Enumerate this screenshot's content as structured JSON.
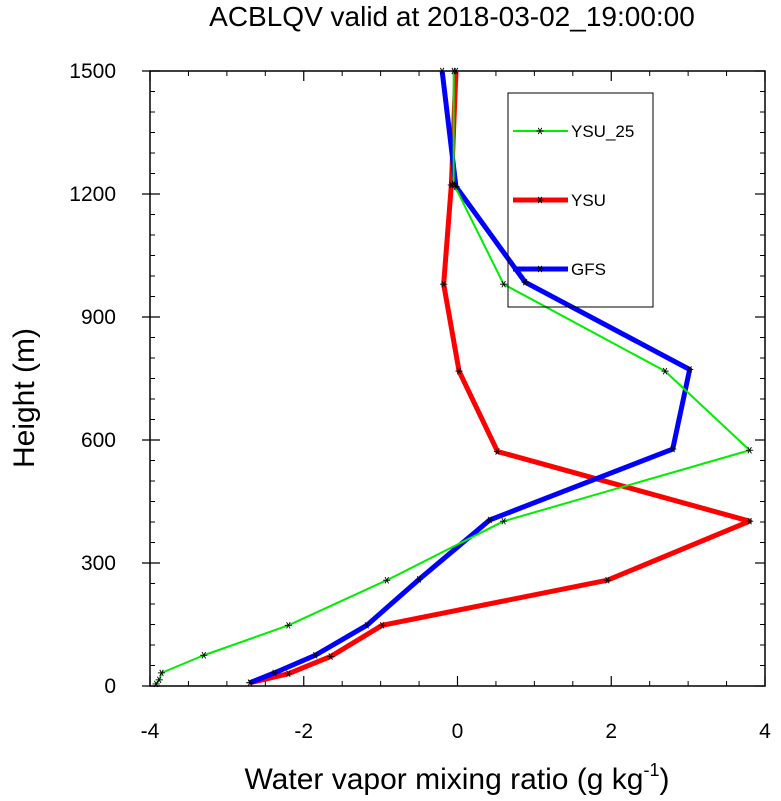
{
  "chart_data": {
    "type": "line",
    "title": "ACBLQV valid at 2018-03-02_19:00:00",
    "xlabel": {
      "main": "Water vapor mixing ratio (g kg",
      "sup": "-1",
      "close": ")"
    },
    "ylabel": "Height (m)",
    "xlim": [
      -4,
      4
    ],
    "ylim": [
      0,
      1500
    ],
    "xticks": [
      -4,
      -2,
      0,
      2,
      4
    ],
    "xtick_labels": [
      "-4",
      "-2",
      "0",
      "2",
      "4"
    ],
    "yticks": [
      0,
      300,
      600,
      900,
      1200,
      1500
    ],
    "ytick_labels": [
      "0",
      "300",
      "600",
      "900",
      "1200",
      "1500"
    ],
    "grid": false,
    "legend_position": "top-right",
    "series": [
      {
        "name": "YSU_25",
        "color": "#00ee00",
        "line_width": 2,
        "marker": "asterisk",
        "x": [
          -3.92,
          -3.88,
          -3.85,
          -3.3,
          -2.2,
          -0.92,
          0.6,
          3.8,
          2.7,
          0.6,
          -0.05,
          -0.05
        ],
        "y": [
          5,
          15,
          32,
          75,
          148,
          258,
          402,
          575,
          768,
          980,
          1225,
          1500
        ]
      },
      {
        "name": "YSU",
        "color": "#ff0000",
        "line_width": 5,
        "marker": "asterisk",
        "x": [
          -2.7,
          -2.2,
          -1.65,
          -0.98,
          1.95,
          3.8,
          0.52,
          0.02,
          -0.18,
          -0.08,
          -0.02
        ],
        "y": [
          8,
          30,
          72,
          148,
          258,
          402,
          572,
          768,
          980,
          1222,
          1500
        ]
      },
      {
        "name": "GFS",
        "color": "#0000ff",
        "line_width": 5,
        "marker": "asterisk",
        "x": [
          -2.7,
          -2.38,
          -1.85,
          -1.18,
          -0.5,
          0.42,
          2.8,
          3.02,
          0.88,
          -0.02,
          -0.2
        ],
        "y": [
          8,
          32,
          75,
          148,
          260,
          405,
          578,
          772,
          985,
          1218,
          1500
        ]
      }
    ]
  }
}
